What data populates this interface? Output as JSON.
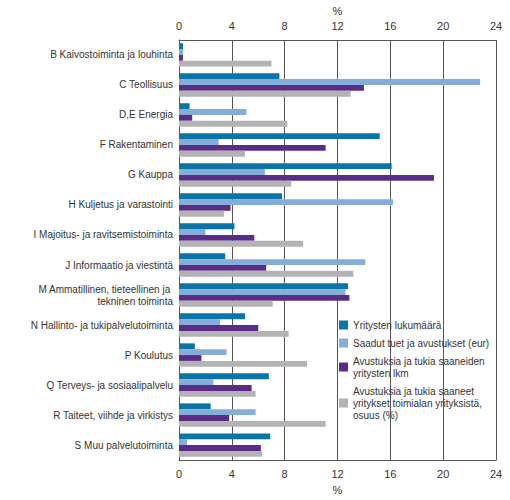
{
  "chart_data": {
    "type": "bar",
    "orientation": "horizontal",
    "xlabel": "%",
    "categories": [
      "B Kaivostoiminta ja louhinta",
      "C Teollisuus",
      "D,E Energia",
      "F Rakentaminen",
      "G Kauppa",
      "H Kuljetus ja varastointi",
      "I Majoitus- ja ravitsemistoiminta",
      "J Informaatio ja viestintä",
      "M Ammatillinen, tieteellinen ja tekninen toiminta",
      "N Hallinto- ja tukipalvelutoiminta",
      "P Koulutus",
      "Q Terveys- ja sosiaalipalvelu",
      "R Taiteet, viihde ja virkistys",
      "S Muu palvelutoiminta"
    ],
    "series": [
      {
        "name": "Yritysten lukumäärä",
        "color": "#0a74a6",
        "values": [
          0.3,
          7.6,
          0.8,
          15.2,
          16.1,
          7.8,
          4.2,
          3.5,
          12.8,
          5.0,
          1.2,
          6.8,
          2.4,
          6.9
        ]
      },
      {
        "name": "Saadut tuet ja avustukset (eur)",
        "color": "#86acd8",
        "values": [
          0.3,
          22.8,
          5.1,
          3.0,
          6.5,
          16.2,
          2.0,
          14.1,
          12.6,
          3.1,
          3.6,
          2.6,
          5.8,
          0.6
        ]
      },
      {
        "name": "Avustuksia ja tukia saaneiden yritysten lkm",
        "color": "#5b2c86",
        "values": [
          0.3,
          14.0,
          1.0,
          11.1,
          19.3,
          3.9,
          5.7,
          6.6,
          12.9,
          6.0,
          1.7,
          5.5,
          3.8,
          6.2
        ]
      },
      {
        "name": "Avustuksia ja tukia saaneet yritykset toimialan yrityksistä, osuus (%)",
        "color": "#b3b3b5",
        "values": [
          7.0,
          13.0,
          8.2,
          5.0,
          8.5,
          3.4,
          9.4,
          13.2,
          7.1,
          8.3,
          9.7,
          5.8,
          11.1,
          6.3
        ]
      }
    ],
    "xlim": [
      0,
      24
    ],
    "xticks": [
      0,
      4,
      8,
      12,
      16,
      20,
      24
    ],
    "grid": true,
    "legend": "right"
  }
}
